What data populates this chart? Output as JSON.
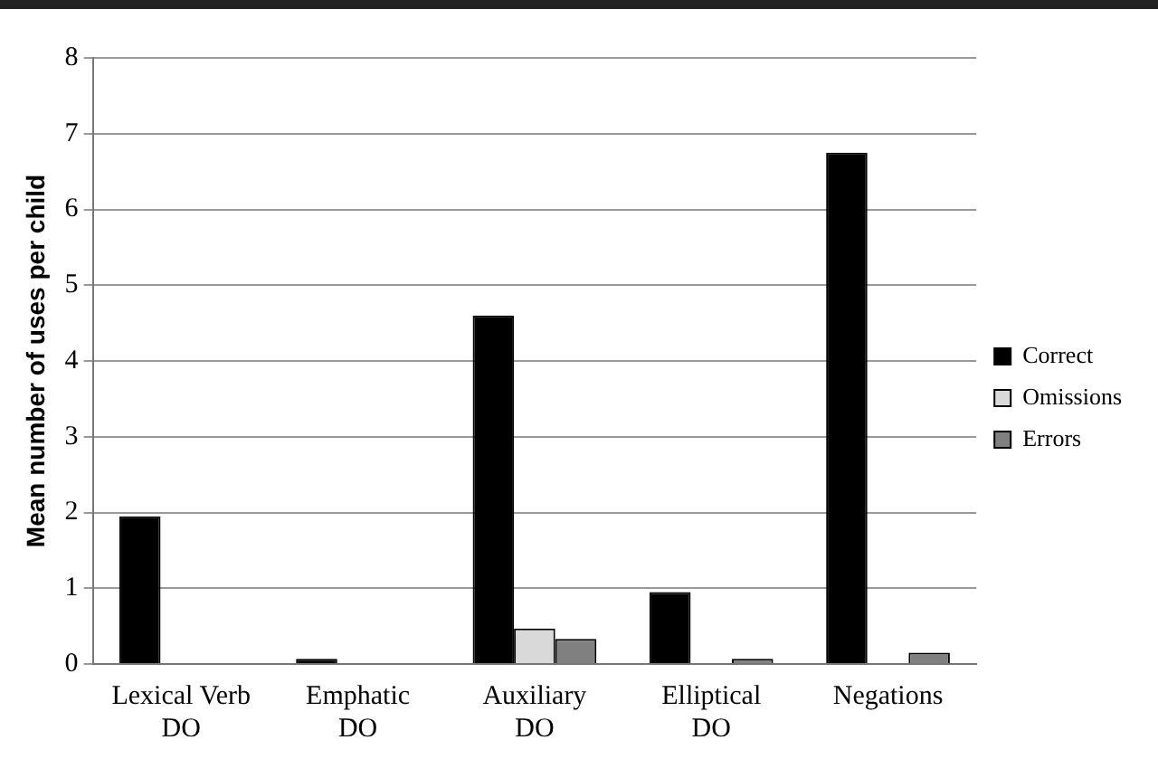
{
  "chart_data": {
    "type": "bar",
    "ylabel": "Mean number of uses per child",
    "categories": [
      "Lexical Verb DO",
      "Emphatic DO",
      "Auxiliary DO",
      "Elliptical DO",
      "Negations"
    ],
    "series": [
      {
        "name": "Correct",
        "color": "#000000",
        "values": [
          1.95,
          0.07,
          4.6,
          0.95,
          6.75
        ]
      },
      {
        "name": "Omissions",
        "color": "#d9d9d9",
        "values": [
          0,
          0,
          0.47,
          0,
          0
        ]
      },
      {
        "name": "Errors",
        "color": "#808080",
        "values": [
          0,
          0,
          0.33,
          0.07,
          0.15
        ]
      }
    ],
    "ylim": [
      0,
      8
    ],
    "yticks": [
      0,
      1,
      2,
      3,
      4,
      5,
      6,
      7,
      8
    ],
    "grid": "y",
    "legend": "right"
  }
}
